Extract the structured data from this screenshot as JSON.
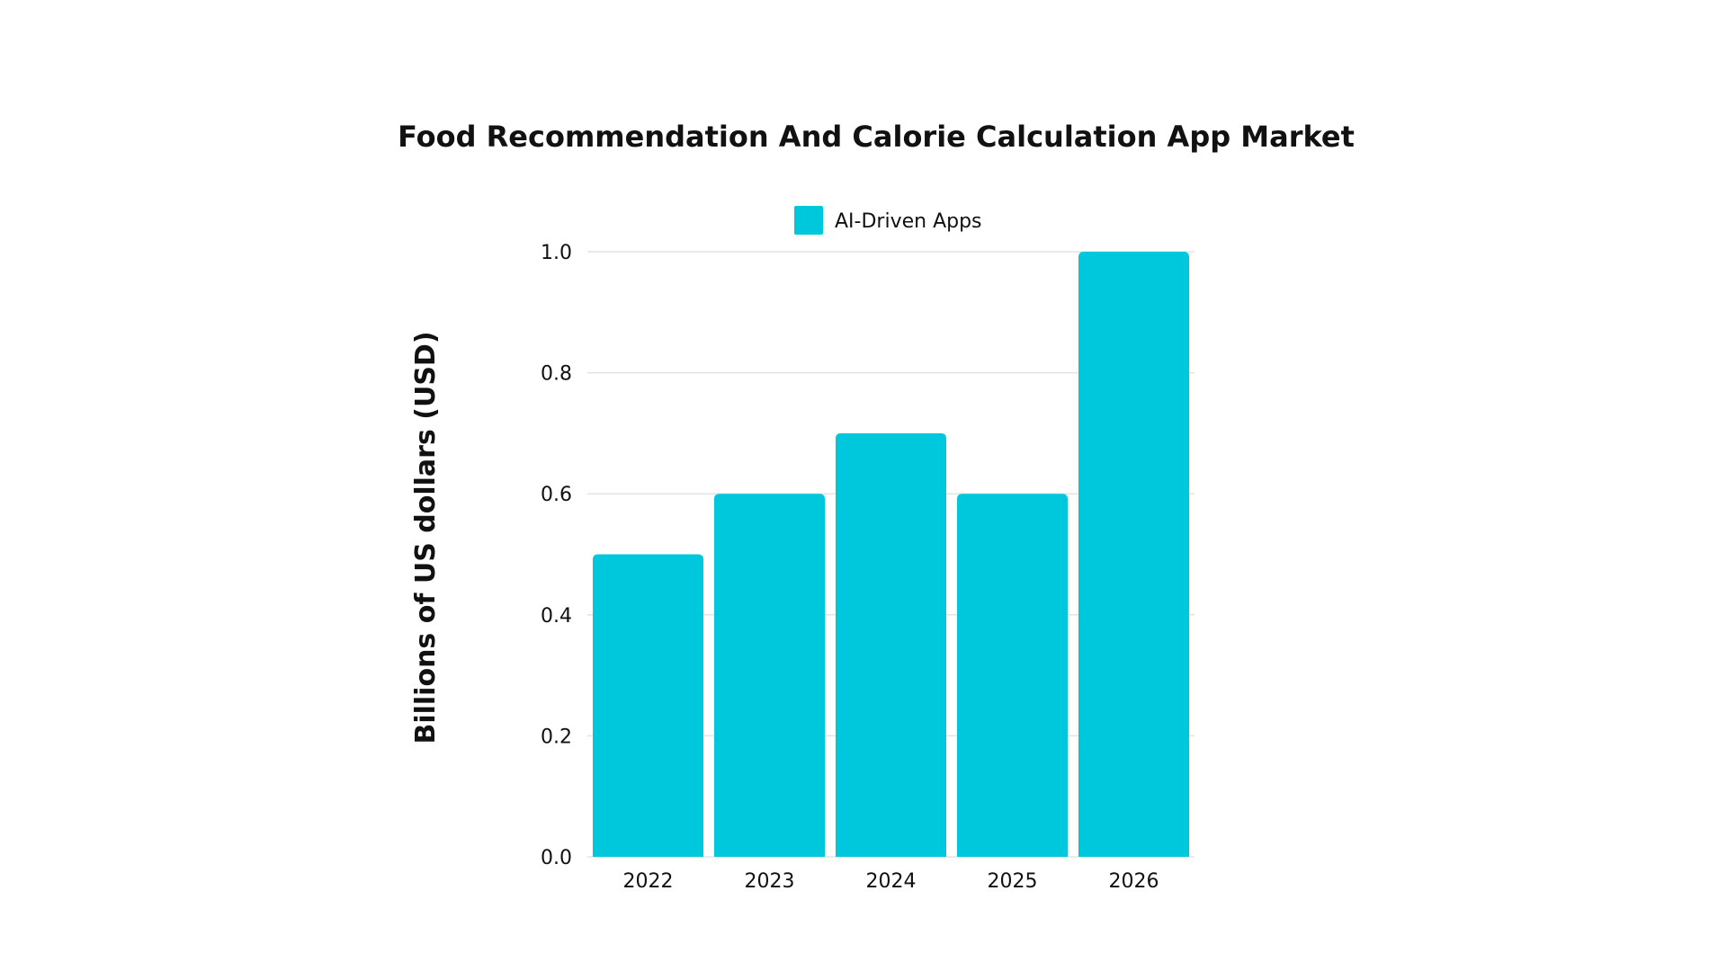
{
  "chart_data": {
    "type": "bar",
    "title": "Food Recommendation And Calorie Calculation App Market",
    "xlabel": "",
    "ylabel": "Billions of US dollars (USD)",
    "categories": [
      "2022",
      "2023",
      "2024",
      "2025",
      "2026"
    ],
    "series": [
      {
        "name": "AI-Driven Apps",
        "values": [
          0.5,
          0.6,
          0.7,
          0.6,
          1.0
        ],
        "color": "#00C8DC"
      }
    ],
    "ylim": [
      0,
      1.0
    ],
    "yticks": [
      "0.0",
      "0.2",
      "0.4",
      "0.6",
      "0.8",
      "1.0"
    ],
    "grid": true,
    "legend": "top-center"
  }
}
